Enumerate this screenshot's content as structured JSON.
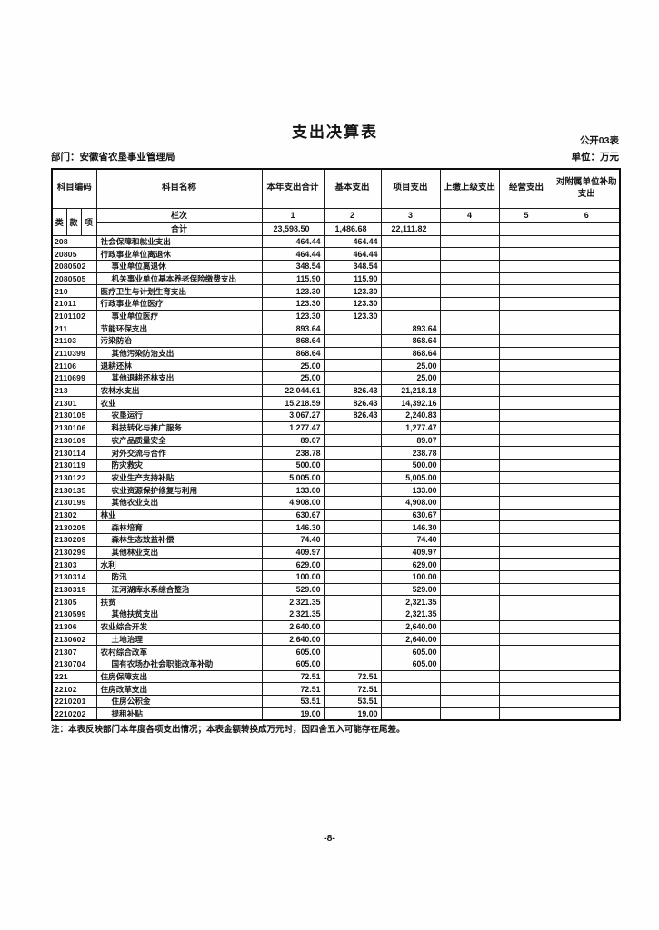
{
  "page": {
    "title": "支出决算表",
    "table_code": "公开03表",
    "department": "部门：安徽省农垦事业管理局",
    "unit": "单位：万元",
    "note": "注：本表反映部门本年度各项支出情况；本表金额转换成万元时，因四舍五入可能存在尾差。",
    "page_number": "-8-"
  },
  "table": {
    "headers": {
      "subject_code": "科目编码",
      "subject_name": "科目名称",
      "col_total": "本年支出合计",
      "col_basic": "基本支出",
      "col_project": "项目支出",
      "col_upper": "上缴上级支出",
      "col_operating": "经营支出",
      "col_affiliated": "对附属单位补助支出",
      "sub_class": "类",
      "sub_section": "款",
      "sub_item": "项",
      "lanci": "栏次",
      "col_numbers": [
        "1",
        "2",
        "3",
        "4",
        "5",
        "6"
      ]
    },
    "total_row": {
      "label": "合计",
      "values": [
        "23,598.50",
        "1,486.68",
        "22,111.82",
        "",
        "",
        ""
      ]
    },
    "rows": [
      {
        "code": "208",
        "name": "社会保障和就业支出",
        "indent": false,
        "values": [
          "464.44",
          "464.44",
          "",
          "",
          "",
          ""
        ]
      },
      {
        "code": "20805",
        "name": "行政事业单位离退休",
        "indent": false,
        "values": [
          "464.44",
          "464.44",
          "",
          "",
          "",
          ""
        ]
      },
      {
        "code": "2080502",
        "name": "事业单位离退休",
        "indent": true,
        "values": [
          "348.54",
          "348.54",
          "",
          "",
          "",
          ""
        ]
      },
      {
        "code": "2080505",
        "name": "机关事业单位基本养老保险缴费支出",
        "indent": true,
        "values": [
          "115.90",
          "115.90",
          "",
          "",
          "",
          ""
        ]
      },
      {
        "code": "210",
        "name": "医疗卫生与计划生育支出",
        "indent": false,
        "values": [
          "123.30",
          "123.30",
          "",
          "",
          "",
          ""
        ]
      },
      {
        "code": "21011",
        "name": "行政事业单位医疗",
        "indent": false,
        "values": [
          "123.30",
          "123.30",
          "",
          "",
          "",
          ""
        ]
      },
      {
        "code": "2101102",
        "name": "事业单位医疗",
        "indent": true,
        "values": [
          "123.30",
          "123.30",
          "",
          "",
          "",
          ""
        ]
      },
      {
        "code": "211",
        "name": "节能环保支出",
        "indent": false,
        "values": [
          "893.64",
          "",
          "893.64",
          "",
          "",
          ""
        ]
      },
      {
        "code": "21103",
        "name": "污染防治",
        "indent": false,
        "values": [
          "868.64",
          "",
          "868.64",
          "",
          "",
          ""
        ]
      },
      {
        "code": "2110399",
        "name": "其他污染防治支出",
        "indent": true,
        "values": [
          "868.64",
          "",
          "868.64",
          "",
          "",
          ""
        ]
      },
      {
        "code": "21106",
        "name": "退耕还林",
        "indent": false,
        "values": [
          "25.00",
          "",
          "25.00",
          "",
          "",
          ""
        ]
      },
      {
        "code": "2110699",
        "name": "其他退耕还林支出",
        "indent": true,
        "values": [
          "25.00",
          "",
          "25.00",
          "",
          "",
          ""
        ]
      },
      {
        "code": "213",
        "name": "农林水支出",
        "indent": false,
        "values": [
          "22,044.61",
          "826.43",
          "21,218.18",
          "",
          "",
          ""
        ]
      },
      {
        "code": "21301",
        "name": "农业",
        "indent": false,
        "values": [
          "15,218.59",
          "826.43",
          "14,392.16",
          "",
          "",
          ""
        ]
      },
      {
        "code": "2130105",
        "name": "农垦运行",
        "indent": true,
        "values": [
          "3,067.27",
          "826.43",
          "2,240.83",
          "",
          "",
          ""
        ]
      },
      {
        "code": "2130106",
        "name": "科技转化与推广服务",
        "indent": true,
        "values": [
          "1,277.47",
          "",
          "1,277.47",
          "",
          "",
          ""
        ]
      },
      {
        "code": "2130109",
        "name": "农产品质量安全",
        "indent": true,
        "values": [
          "89.07",
          "",
          "89.07",
          "",
          "",
          ""
        ]
      },
      {
        "code": "2130114",
        "name": "对外交流与合作",
        "indent": true,
        "values": [
          "238.78",
          "",
          "238.78",
          "",
          "",
          ""
        ]
      },
      {
        "code": "2130119",
        "name": "防灾救灾",
        "indent": true,
        "values": [
          "500.00",
          "",
          "500.00",
          "",
          "",
          ""
        ]
      },
      {
        "code": "2130122",
        "name": "农业生产支持补贴",
        "indent": true,
        "values": [
          "5,005.00",
          "",
          "5,005.00",
          "",
          "",
          ""
        ]
      },
      {
        "code": "2130135",
        "name": "农业资源保护修复与利用",
        "indent": true,
        "values": [
          "133.00",
          "",
          "133.00",
          "",
          "",
          ""
        ]
      },
      {
        "code": "2130199",
        "name": "其他农业支出",
        "indent": true,
        "values": [
          "4,908.00",
          "",
          "4,908.00",
          "",
          "",
          ""
        ]
      },
      {
        "code": "21302",
        "name": "林业",
        "indent": false,
        "values": [
          "630.67",
          "",
          "630.67",
          "",
          "",
          ""
        ]
      },
      {
        "code": "2130205",
        "name": "森林培育",
        "indent": true,
        "values": [
          "146.30",
          "",
          "146.30",
          "",
          "",
          ""
        ]
      },
      {
        "code": "2130209",
        "name": "森林生态效益补偿",
        "indent": true,
        "values": [
          "74.40",
          "",
          "74.40",
          "",
          "",
          ""
        ]
      },
      {
        "code": "2130299",
        "name": "其他林业支出",
        "indent": true,
        "values": [
          "409.97",
          "",
          "409.97",
          "",
          "",
          ""
        ]
      },
      {
        "code": "21303",
        "name": "水利",
        "indent": false,
        "values": [
          "629.00",
          "",
          "629.00",
          "",
          "",
          ""
        ]
      },
      {
        "code": "2130314",
        "name": "防汛",
        "indent": true,
        "values": [
          "100.00",
          "",
          "100.00",
          "",
          "",
          ""
        ]
      },
      {
        "code": "2130319",
        "name": "江河湖库水系综合整治",
        "indent": true,
        "values": [
          "529.00",
          "",
          "529.00",
          "",
          "",
          ""
        ]
      },
      {
        "code": "21305",
        "name": "扶贫",
        "indent": false,
        "values": [
          "2,321.35",
          "",
          "2,321.35",
          "",
          "",
          ""
        ]
      },
      {
        "code": "2130599",
        "name": "其他扶贫支出",
        "indent": true,
        "values": [
          "2,321.35",
          "",
          "2,321.35",
          "",
          "",
          ""
        ]
      },
      {
        "code": "21306",
        "name": "农业综合开发",
        "indent": false,
        "values": [
          "2,640.00",
          "",
          "2,640.00",
          "",
          "",
          ""
        ]
      },
      {
        "code": "2130602",
        "name": "土地治理",
        "indent": true,
        "values": [
          "2,640.00",
          "",
          "2,640.00",
          "",
          "",
          ""
        ]
      },
      {
        "code": "21307",
        "name": "农村综合改革",
        "indent": false,
        "values": [
          "605.00",
          "",
          "605.00",
          "",
          "",
          ""
        ]
      },
      {
        "code": "2130704",
        "name": "国有农场办社会职能改革补助",
        "indent": true,
        "values": [
          "605.00",
          "",
          "605.00",
          "",
          "",
          ""
        ]
      },
      {
        "code": "221",
        "name": "住房保障支出",
        "indent": false,
        "values": [
          "72.51",
          "72.51",
          "",
          "",
          "",
          ""
        ]
      },
      {
        "code": "22102",
        "name": "住房改革支出",
        "indent": false,
        "values": [
          "72.51",
          "72.51",
          "",
          "",
          "",
          ""
        ]
      },
      {
        "code": "2210201",
        "name": "住房公积金",
        "indent": true,
        "values": [
          "53.51",
          "53.51",
          "",
          "",
          "",
          ""
        ]
      },
      {
        "code": "2210202",
        "name": "提租补贴",
        "indent": true,
        "values": [
          "19.00",
          "19.00",
          "",
          "",
          "",
          ""
        ]
      }
    ]
  }
}
